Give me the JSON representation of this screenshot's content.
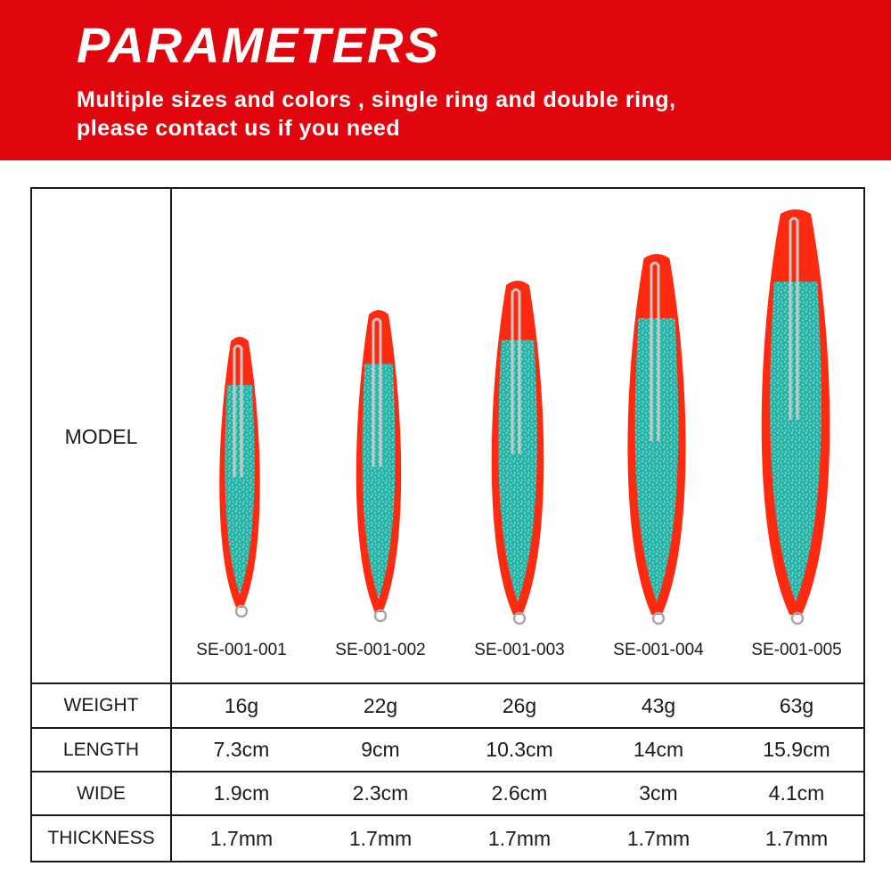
{
  "banner": {
    "title": "PARAMETERS",
    "subtitle_line1": "Multiple sizes and colors , single ring and double ring,",
    "subtitle_line2": "please contact us if you need",
    "color": "#e1060d"
  },
  "table": {
    "model_label": "MODEL",
    "rows": [
      {
        "label": "WEIGHT"
      },
      {
        "label": "LENGTH"
      },
      {
        "label": "WIDE"
      },
      {
        "label": "THICKNESS"
      }
    ],
    "products": [
      {
        "model": "SE-001-001",
        "weight": "16g",
        "length": "7.3cm",
        "wide": "1.9cm",
        "thickness": "1.7mm"
      },
      {
        "model": "SE-001-002",
        "weight": "22g",
        "length": "9cm",
        "wide": "2.3cm",
        "thickness": "1.7mm"
      },
      {
        "model": "SE-001-003",
        "weight": "26g",
        "length": "10.3cm",
        "wide": "2.6cm",
        "thickness": "1.7mm"
      },
      {
        "model": "SE-001-004",
        "weight": "43g",
        "length": "14cm",
        "wide": "3cm",
        "thickness": "1.7mm"
      },
      {
        "model": "SE-001-005",
        "weight": "63g",
        "length": "15.9cm",
        "wide": "4.1cm",
        "thickness": "1.7mm"
      }
    ]
  },
  "lure_colors": {
    "body": "#ff2a10",
    "insert": "#2bb3a8",
    "insert_light": "#7fe4d6",
    "wire": "#c8c8c8"
  }
}
